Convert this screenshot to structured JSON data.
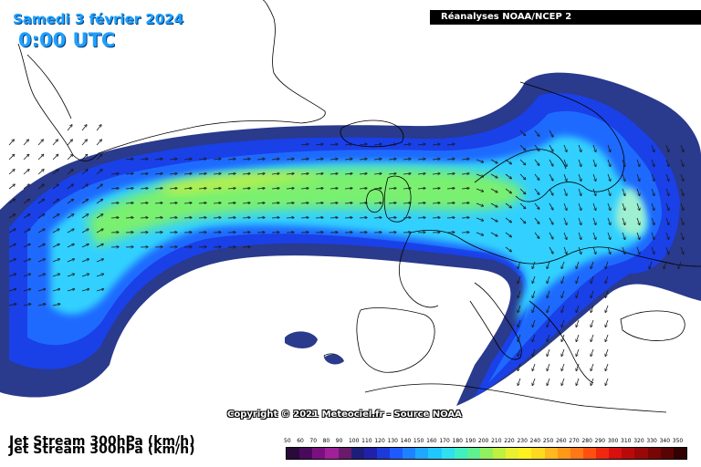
{
  "header": {
    "date": "Samedi 3 février 2024",
    "time": "0:00 UTC",
    "source": "Réanalyses NOAA/NCEP 2"
  },
  "copyright": "Copyright © 2021 Meteociel.fr - Source NOAA",
  "legend": {
    "title": "Jet Stream 300hPa (km/h)",
    "unit": "km/h",
    "levels": [
      "50",
      "60",
      "70",
      "80",
      "90",
      "100",
      "110",
      "120",
      "130",
      "140",
      "150",
      "160",
      "170",
      "180",
      "190",
      "200",
      "210",
      "220",
      "230",
      "240",
      "250",
      "260",
      "270",
      "280",
      "290",
      "300",
      "310",
      "320",
      "330",
      "340",
      "350"
    ],
    "colors": [
      "#2a0a3a",
      "#4a0a5c",
      "#7a1080",
      "#a0209a",
      "#6a1a6a",
      "#1e1e7a",
      "#2020a8",
      "#1c3ad8",
      "#1e5aff",
      "#1e82ff",
      "#1ea8ff",
      "#20c8ff",
      "#30e0f0",
      "#40f0c0",
      "#60f090",
      "#90f060",
      "#c0f040",
      "#e8f030",
      "#fff020",
      "#ffd820",
      "#ffb820",
      "#ff9818",
      "#ff7818",
      "#ff5010",
      "#f02810",
      "#d81010",
      "#b80a0a",
      "#980808",
      "#780606",
      "#580404",
      "#300202"
    ]
  }
}
